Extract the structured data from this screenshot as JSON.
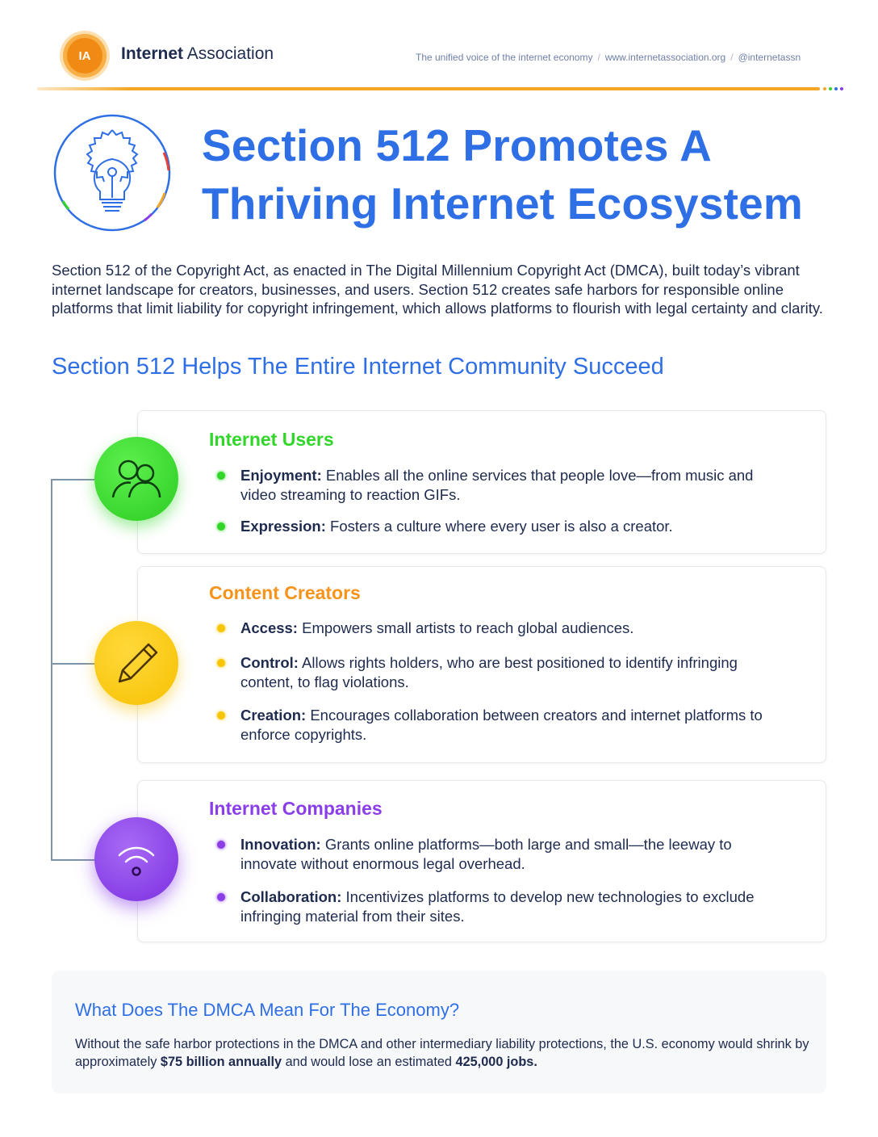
{
  "header": {
    "logo_text": "IA",
    "brand_part1": "Internet",
    "brand_part2": " Association",
    "tagline": "The unified voice of the internet economy",
    "website": "www.internetassociation.org",
    "handle": "@internetassn",
    "separator": "/"
  },
  "colors": {
    "accent_blue": "#2f6fe6",
    "orange": "#f5a623",
    "green": "#32d62a",
    "yellow": "#f7c600",
    "purple": "#8b3ee8"
  },
  "title": {
    "line1": "Section 512 Promotes A",
    "line2": "Thriving Internet Ecosystem",
    "icon": "lightbulb-icon"
  },
  "intro": "Section 512 of the Copyright Act, as enacted in The Digital Millennium Copyright Act (DMCA), built today’s vibrant internet landscape for creators, businesses, and users. Section 512 creates safe harbors for responsible online platforms that limit liability for copyright infringement, which allows platforms to flourish with legal certainty and clarity.",
  "subheading": "Section 512 Helps The Entire Internet Community Succeed",
  "groups": [
    {
      "heading": "Internet Users",
      "icon": "users-icon",
      "items": [
        {
          "term": "Enjoyment:",
          "text": " Enables all the online services that people love—from music and video streaming to reaction GIFs."
        },
        {
          "term": "Expression:",
          "text": " Fosters a culture where every user is also a creator."
        }
      ]
    },
    {
      "heading": "Content Creators",
      "icon": "pencil-icon",
      "items": [
        {
          "term": "Access:",
          "text": " Empowers small artists to reach global audiences."
        },
        {
          "term": "Control:",
          "text": " Allows rights holders, who are best positioned to identify infringing content, to flag violations."
        },
        {
          "term": "Creation:",
          "text": " Encourages collaboration between creators and internet platforms to enforce copyrights."
        }
      ]
    },
    {
      "heading": "Internet Companies",
      "icon": "wifi-icon",
      "items": [
        {
          "term": "Innovation:",
          "text": " Grants online platforms—both large and small—the leeway to innovate without enormous legal overhead."
        },
        {
          "term": "Collaboration:",
          "text": " Incentivizes platforms to develop new technologies to exclude infringing material from their sites."
        }
      ]
    }
  ],
  "economy": {
    "heading": "What Does The DMCA Mean For The Economy?",
    "text_a": "Without the safe harbor protections in the DMCA and other intermediary liability protections, the U.S. economy would shrink by approximately ",
    "bold_a": "$75 billion annually",
    "text_b": " and would lose an estimated ",
    "bold_b": "425,000 jobs."
  }
}
